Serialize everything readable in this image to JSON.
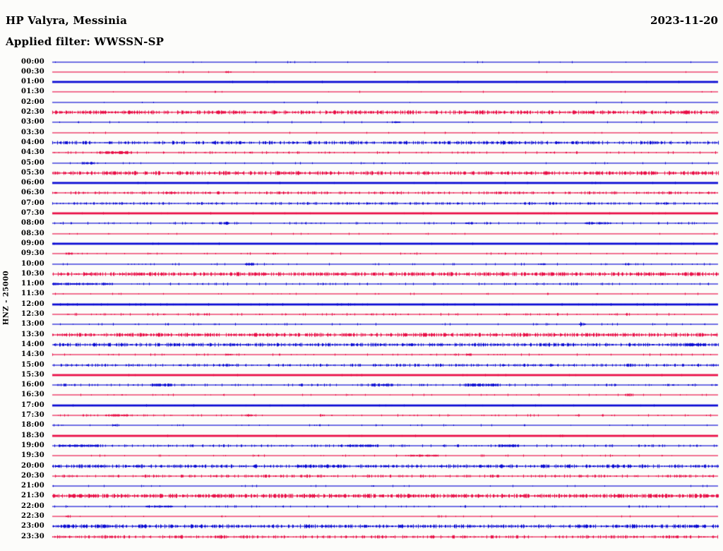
{
  "header": {
    "station_title": "HP Valyra, Messinia",
    "date": "2023-11-20",
    "filter_line": "Applied filter: WWSSN-SP"
  },
  "y_axis": {
    "channel_scale_label": "HNZ - 25000"
  },
  "colors": {
    "background": "#fcfcfa",
    "trace_blue": "#0909d2",
    "trace_red": "#e80d45",
    "text": "#000000"
  },
  "chart_data": {
    "type": "line",
    "subtype": "helicorder-dayplot",
    "station": "HP Valyra, Messinia",
    "channel": "HNZ",
    "scale": 25000,
    "date": "2023-11-20",
    "filter": "WWSSN-SP",
    "row_interval_minutes": 30,
    "legend_position": "none",
    "grid": false,
    "rows": [
      {
        "t": "00:00",
        "c": "blue",
        "w": "thin",
        "n": 0.02,
        "a": 0.8,
        "bursts": []
      },
      {
        "t": "00:30",
        "c": "red",
        "w": "thin",
        "n": 0.02,
        "a": 0.8,
        "bursts": [
          {
            "p": 0.26,
            "wd": 0.008,
            "a": 1.2
          }
        ]
      },
      {
        "t": "01:00",
        "c": "blue",
        "w": "bold",
        "n": 0.03,
        "a": 0.8,
        "bursts": []
      },
      {
        "t": "01:30",
        "c": "red",
        "w": "thin",
        "n": 0.02,
        "a": 0.8,
        "bursts": []
      },
      {
        "t": "02:00",
        "c": "blue",
        "w": "thin",
        "n": 0.02,
        "a": 0.8,
        "bursts": []
      },
      {
        "t": "02:30",
        "c": "red",
        "w": "thin",
        "n": 0.55,
        "a": 1.4,
        "bursts": []
      },
      {
        "t": "03:00",
        "c": "blue",
        "w": "thin",
        "n": 0.03,
        "a": 0.8,
        "bursts": [
          {
            "p": 0.51,
            "wd": 0.012,
            "a": 1.3
          }
        ]
      },
      {
        "t": "03:30",
        "c": "red",
        "w": "thin",
        "n": 0.03,
        "a": 0.8,
        "bursts": []
      },
      {
        "t": "04:00",
        "c": "blue",
        "w": "thin",
        "n": 0.45,
        "a": 1.3,
        "bursts": []
      },
      {
        "t": "04:30",
        "c": "red",
        "w": "thin",
        "n": 0.12,
        "a": 1.0,
        "bursts": [
          {
            "p": 0.07,
            "wd": 0.05,
            "a": 1.8
          }
        ]
      },
      {
        "t": "05:00",
        "c": "blue",
        "w": "thin",
        "n": 0.04,
        "a": 0.8,
        "bursts": [
          {
            "p": 0.045,
            "wd": 0.018,
            "a": 1.6
          }
        ]
      },
      {
        "t": "05:30",
        "c": "red",
        "w": "thin",
        "n": 0.55,
        "a": 1.4,
        "bursts": []
      },
      {
        "t": "06:00",
        "c": "blue",
        "w": "bold",
        "n": 0.05,
        "a": 0.8,
        "bursts": []
      },
      {
        "t": "06:30",
        "c": "red",
        "w": "thin",
        "n": 0.3,
        "a": 1.1,
        "bursts": [
          {
            "p": 0.17,
            "wd": 0.015,
            "a": 1.6
          }
        ]
      },
      {
        "t": "07:00",
        "c": "blue",
        "w": "thin",
        "n": 0.3,
        "a": 1.0,
        "bursts": []
      },
      {
        "t": "07:30",
        "c": "red",
        "w": "bold",
        "n": 0.06,
        "a": 0.8,
        "bursts": []
      },
      {
        "t": "08:00",
        "c": "blue",
        "w": "thin",
        "n": 0.12,
        "a": 1.0,
        "bursts": [
          {
            "p": 0.25,
            "wd": 0.015,
            "a": 1.8
          },
          {
            "p": 0.62,
            "wd": 0.01,
            "a": 1.4
          },
          {
            "p": 0.8,
            "wd": 0.04,
            "a": 1.4
          }
        ]
      },
      {
        "t": "08:30",
        "c": "red",
        "w": "thin",
        "n": 0.04,
        "a": 0.8,
        "bursts": []
      },
      {
        "t": "09:00",
        "c": "blue",
        "w": "bold",
        "n": 0.05,
        "a": 0.8,
        "bursts": []
      },
      {
        "t": "09:30",
        "c": "red",
        "w": "thin",
        "n": 0.06,
        "a": 0.9,
        "bursts": [
          {
            "p": 0.02,
            "wd": 0.01,
            "a": 1.3
          },
          {
            "p": 0.33,
            "wd": 0.008,
            "a": 1.2
          }
        ]
      },
      {
        "t": "10:00",
        "c": "blue",
        "w": "thin",
        "n": 0.06,
        "a": 0.9,
        "bursts": [
          {
            "p": 0.29,
            "wd": 0.012,
            "a": 1.8
          },
          {
            "p": 0.73,
            "wd": 0.01,
            "a": 1.2
          },
          {
            "p": 0.86,
            "wd": 0.01,
            "a": 1.2
          }
        ]
      },
      {
        "t": "10:30",
        "c": "red",
        "w": "thin",
        "n": 0.55,
        "a": 1.4,
        "bursts": []
      },
      {
        "t": "11:00",
        "c": "blue",
        "w": "thin",
        "n": 0.12,
        "a": 1.0,
        "bursts": [
          {
            "p": 0.0,
            "wd": 0.09,
            "a": 1.5
          }
        ]
      },
      {
        "t": "11:30",
        "c": "red",
        "w": "thin",
        "n": 0.05,
        "a": 0.8,
        "bursts": []
      },
      {
        "t": "12:00",
        "c": "blue",
        "w": "bold",
        "n": 0.15,
        "a": 0.9,
        "bursts": []
      },
      {
        "t": "12:30",
        "c": "red",
        "w": "thin",
        "n": 0.12,
        "a": 1.0,
        "bursts": []
      },
      {
        "t": "13:00",
        "c": "blue",
        "w": "thin",
        "n": 0.05,
        "a": 0.9,
        "bursts": [
          {
            "p": 0.789,
            "wd": 0.012,
            "a": 3.8
          }
        ]
      },
      {
        "t": "13:30",
        "c": "red",
        "w": "thin",
        "n": 0.55,
        "a": 1.4,
        "bursts": []
      },
      {
        "t": "14:00",
        "c": "blue",
        "w": "thin",
        "n": 0.5,
        "a": 1.3,
        "bursts": [
          {
            "p": 0.95,
            "wd": 0.03,
            "a": 1.6
          }
        ]
      },
      {
        "t": "14:30",
        "c": "red",
        "w": "thin",
        "n": 0.08,
        "a": 0.9,
        "bursts": [
          {
            "p": 0.26,
            "wd": 0.008,
            "a": 1.5
          },
          {
            "p": 0.62,
            "wd": 0.008,
            "a": 1.5
          }
        ]
      },
      {
        "t": "15:00",
        "c": "blue",
        "w": "thin",
        "n": 0.35,
        "a": 1.1,
        "bursts": []
      },
      {
        "t": "15:30",
        "c": "red",
        "w": "bold",
        "n": 0.05,
        "a": 0.8,
        "bursts": []
      },
      {
        "t": "16:00",
        "c": "blue",
        "w": "thin",
        "n": 0.15,
        "a": 1.0,
        "bursts": [
          {
            "p": 0.15,
            "wd": 0.03,
            "a": 1.8
          },
          {
            "p": 0.48,
            "wd": 0.03,
            "a": 2.0
          },
          {
            "p": 0.62,
            "wd": 0.05,
            "a": 1.8
          }
        ]
      },
      {
        "t": "16:30",
        "c": "red",
        "w": "thin",
        "n": 0.06,
        "a": 0.9,
        "bursts": [
          {
            "p": 0.86,
            "wd": 0.01,
            "a": 1.8
          }
        ]
      },
      {
        "t": "17:00",
        "c": "blue",
        "w": "bold",
        "n": 0.06,
        "a": 0.8,
        "bursts": []
      },
      {
        "t": "17:30",
        "c": "red",
        "w": "thin",
        "n": 0.1,
        "a": 0.9,
        "bursts": [
          {
            "p": 0.08,
            "wd": 0.04,
            "a": 1.4
          },
          {
            "p": 0.29,
            "wd": 0.01,
            "a": 1.3
          }
        ]
      },
      {
        "t": "18:00",
        "c": "blue",
        "w": "thin",
        "n": 0.05,
        "a": 0.8,
        "bursts": [
          {
            "p": 0.09,
            "wd": 0.008,
            "a": 1.4
          }
        ]
      },
      {
        "t": "18:30",
        "c": "red",
        "w": "bold",
        "n": 0.06,
        "a": 0.8,
        "bursts": [
          {
            "p": 0.76,
            "wd": 0.008,
            "a": 1.5
          }
        ]
      },
      {
        "t": "19:00",
        "c": "blue",
        "w": "thin",
        "n": 0.18,
        "a": 1.0,
        "bursts": [
          {
            "p": 0.01,
            "wd": 0.06,
            "a": 1.5
          },
          {
            "p": 0.44,
            "wd": 0.05,
            "a": 1.6
          },
          {
            "p": 0.67,
            "wd": 0.03,
            "a": 1.6
          }
        ]
      },
      {
        "t": "19:30",
        "c": "red",
        "w": "thin",
        "n": 0.06,
        "a": 0.9,
        "bursts": [
          {
            "p": 0.53,
            "wd": 0.05,
            "a": 1.3
          }
        ]
      },
      {
        "t": "20:00",
        "c": "blue",
        "w": "thin",
        "n": 0.5,
        "a": 1.3,
        "bursts": []
      },
      {
        "t": "20:30",
        "c": "red",
        "w": "thin",
        "n": 0.3,
        "a": 1.1,
        "bursts": []
      },
      {
        "t": "21:00",
        "c": "blue",
        "w": "thin",
        "n": 0.03,
        "a": 0.8,
        "bursts": []
      },
      {
        "t": "21:30",
        "c": "red",
        "w": "thin",
        "n": 0.65,
        "a": 1.5,
        "bursts": []
      },
      {
        "t": "22:00",
        "c": "blue",
        "w": "thin",
        "n": 0.1,
        "a": 0.9,
        "bursts": [
          {
            "p": 0.14,
            "wd": 0.04,
            "a": 1.3
          }
        ]
      },
      {
        "t": "22:30",
        "c": "red",
        "w": "thin",
        "n": 0.03,
        "a": 0.8,
        "bursts": [
          {
            "p": 0.02,
            "wd": 0.006,
            "a": 1.5
          }
        ]
      },
      {
        "t": "23:00",
        "c": "blue",
        "w": "thin",
        "n": 0.55,
        "a": 1.4,
        "bursts": []
      },
      {
        "t": "23:30",
        "c": "red",
        "w": "thin",
        "n": 0.35,
        "a": 1.2,
        "bursts": []
      }
    ]
  }
}
